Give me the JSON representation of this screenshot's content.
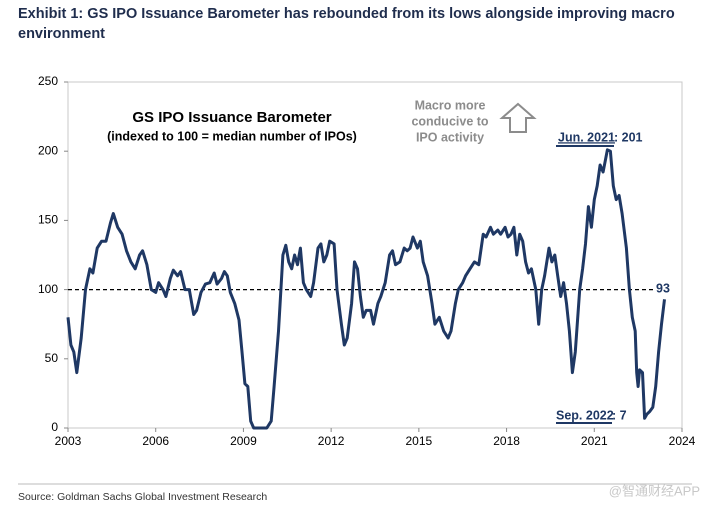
{
  "chart_data": {
    "type": "line",
    "title": [
      "Exhibit 1: GS IPO Issuance Barometer has rebounded from its lows alongside improving macro",
      "environment"
    ],
    "inner_title": "GS IPO Issuance Barometer",
    "subtitle": "(indexed to 100 = median number of IPOs)",
    "annotations": [
      {
        "lines": [
          "Macro more",
          "conducive to",
          "IPO activity"
        ]
      },
      {
        "date": "Jun. 2021",
        "value": ": 201"
      },
      {
        "date": "Sep. 2022",
        "value": ": 7"
      },
      {
        "value": "93"
      }
    ],
    "source": "Source: Goldman Sachs Global Investment Research",
    "watermark": "@智通财经APP",
    "reference_line": 100,
    "xlim": [
      2003,
      2024
    ],
    "xticks": [
      2003,
      2006,
      2009,
      2012,
      2015,
      2018,
      2021,
      2024
    ],
    "ylim": [
      0,
      250
    ],
    "yticks": [
      0,
      50,
      100,
      150,
      200,
      250
    ],
    "series": [
      {
        "name": "GS IPO Issuance Barometer",
        "color": "#1f3864",
        "x": [
          2003.0,
          2003.1,
          2003.2,
          2003.3,
          2003.45,
          2003.6,
          2003.75,
          2003.85,
          2004.0,
          2004.15,
          2004.3,
          2004.45,
          2004.55,
          2004.7,
          2004.85,
          2005.0,
          2005.15,
          2005.3,
          2005.45,
          2005.55,
          2005.7,
          2005.85,
          2006.0,
          2006.1,
          2006.25,
          2006.35,
          2006.5,
          2006.6,
          2006.75,
          2006.85,
          2007.0,
          2007.15,
          2007.3,
          2007.4,
          2007.55,
          2007.7,
          2007.85,
          2008.0,
          2008.1,
          2008.25,
          2008.35,
          2008.45,
          2008.55,
          2008.7,
          2008.85,
          2008.95,
          2009.05,
          2009.15,
          2009.25,
          2009.35,
          2009.6,
          2009.8,
          2009.95,
          2010.05,
          2010.2,
          2010.35,
          2010.45,
          2010.55,
          2010.65,
          2010.75,
          2010.85,
          2010.95,
          2011.05,
          2011.15,
          2011.3,
          2011.4,
          2011.55,
          2011.65,
          2011.75,
          2011.85,
          2011.95,
          2012.1,
          2012.2,
          2012.35,
          2012.45,
          2012.55,
          2012.7,
          2012.8,
          2012.9,
          2013.0,
          2013.1,
          2013.2,
          2013.35,
          2013.45,
          2013.6,
          2013.7,
          2013.85,
          2014.0,
          2014.1,
          2014.2,
          2014.35,
          2014.5,
          2014.6,
          2014.7,
          2014.8,
          2014.95,
          2015.05,
          2015.15,
          2015.3,
          2015.45,
          2015.55,
          2015.7,
          2015.85,
          2016.0,
          2016.1,
          2016.25,
          2016.35,
          2016.5,
          2016.6,
          2016.75,
          2016.9,
          2017.05,
          2017.2,
          2017.3,
          2017.45,
          2017.55,
          2017.7,
          2017.8,
          2017.95,
          2018.05,
          2018.15,
          2018.25,
          2018.35,
          2018.45,
          2018.55,
          2018.65,
          2018.75,
          2018.85,
          2019.0,
          2019.1,
          2019.2,
          2019.3,
          2019.45,
          2019.55,
          2019.65,
          2019.75,
          2019.85,
          2019.95,
          2020.05,
          2020.15,
          2020.25,
          2020.35,
          2020.5,
          2020.6,
          2020.7,
          2020.8,
          2020.9,
          2021.0,
          2021.1,
          2021.2,
          2021.3,
          2021.45,
          2021.55,
          2021.65,
          2021.75,
          2021.85,
          2021.95,
          2022.1,
          2022.2,
          2022.3,
          2022.4,
          2022.45,
          2022.5,
          2022.55,
          2022.65,
          2022.72,
          2022.8,
          2022.9,
          2023.0,
          2023.1,
          2023.2,
          2023.3,
          2023.4
        ],
        "values": [
          80,
          60,
          55,
          40,
          65,
          100,
          115,
          112,
          130,
          135,
          135,
          148,
          155,
          145,
          140,
          128,
          120,
          115,
          125,
          128,
          118,
          100,
          98,
          105,
          100,
          95,
          108,
          114,
          110,
          113,
          100,
          100,
          82,
          85,
          98,
          104,
          105,
          112,
          104,
          108,
          113,
          110,
          98,
          90,
          78,
          55,
          32,
          30,
          5,
          0,
          0,
          0,
          5,
          30,
          70,
          125,
          132,
          120,
          115,
          125,
          118,
          130,
          105,
          100,
          95,
          105,
          130,
          133,
          120,
          125,
          135,
          133,
          100,
          75,
          60,
          65,
          90,
          120,
          115,
          95,
          80,
          85,
          85,
          75,
          90,
          95,
          105,
          125,
          128,
          118,
          120,
          130,
          128,
          130,
          138,
          130,
          135,
          120,
          110,
          90,
          75,
          80,
          70,
          65,
          70,
          90,
          100,
          105,
          110,
          115,
          120,
          118,
          140,
          138,
          145,
          140,
          143,
          140,
          145,
          138,
          140,
          145,
          125,
          140,
          135,
          120,
          112,
          115,
          100,
          75,
          100,
          110,
          130,
          120,
          125,
          110,
          95,
          105,
          90,
          70,
          40,
          55,
          100,
          115,
          133,
          160,
          145,
          165,
          175,
          190,
          185,
          201,
          200,
          175,
          165,
          168,
          155,
          130,
          100,
          80,
          70,
          40,
          30,
          42,
          40,
          7,
          10,
          12,
          15,
          30,
          55,
          75,
          93
        ]
      }
    ]
  }
}
